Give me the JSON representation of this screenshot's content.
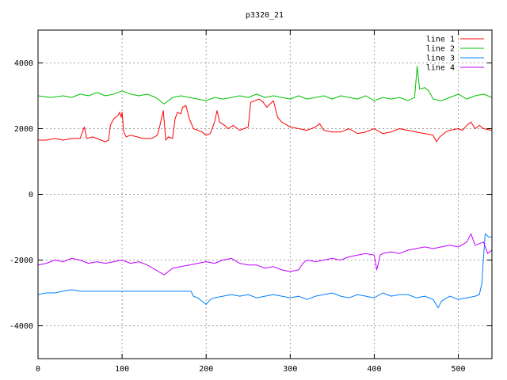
{
  "chart_data": {
    "type": "line",
    "title": "p3320_21",
    "xlim": [
      0,
      540
    ],
    "ylim": [
      -5000,
      5000
    ],
    "xticks": [
      0,
      100,
      200,
      300,
      400,
      500
    ],
    "yticks": [
      -4000,
      -2000,
      0,
      2000,
      4000
    ],
    "xtick_labels": [
      "0",
      "100",
      "200",
      "300",
      "400",
      "500"
    ],
    "ytick_labels": [
      "-4000",
      "-2000",
      "0",
      "2000",
      "4000"
    ],
    "grid": true,
    "legend_position": "top-right",
    "series": [
      {
        "name": "line 1",
        "color": "#ff0000",
        "points": [
          [
            0,
            1650
          ],
          [
            10,
            1650
          ],
          [
            20,
            1700
          ],
          [
            30,
            1650
          ],
          [
            40,
            1700
          ],
          [
            50,
            1700
          ],
          [
            55,
            2050
          ],
          [
            58,
            1700
          ],
          [
            65,
            1750
          ],
          [
            75,
            1650
          ],
          [
            80,
            1600
          ],
          [
            84,
            1650
          ],
          [
            86,
            2100
          ],
          [
            90,
            2300
          ],
          [
            95,
            2400
          ],
          [
            97,
            2500
          ],
          [
            99,
            2350
          ],
          [
            100,
            2500
          ],
          [
            102,
            1900
          ],
          [
            105,
            1750
          ],
          [
            110,
            1800
          ],
          [
            118,
            1750
          ],
          [
            125,
            1700
          ],
          [
            135,
            1700
          ],
          [
            142,
            1800
          ],
          [
            145,
            2100
          ],
          [
            149,
            2550
          ],
          [
            152,
            1650
          ],
          [
            155,
            1750
          ],
          [
            160,
            1700
          ],
          [
            163,
            2300
          ],
          [
            166,
            2500
          ],
          [
            170,
            2450
          ],
          [
            172,
            2650
          ],
          [
            176,
            2700
          ],
          [
            180,
            2300
          ],
          [
            185,
            2000
          ],
          [
            195,
            1900
          ],
          [
            200,
            1800
          ],
          [
            205,
            1850
          ],
          [
            210,
            2200
          ],
          [
            213,
            2550
          ],
          [
            216,
            2200
          ],
          [
            222,
            2100
          ],
          [
            226,
            2000
          ],
          [
            232,
            2100
          ],
          [
            240,
            1950
          ],
          [
            245,
            2000
          ],
          [
            250,
            2050
          ],
          [
            253,
            2800
          ],
          [
            258,
            2850
          ],
          [
            263,
            2900
          ],
          [
            268,
            2800
          ],
          [
            272,
            2650
          ],
          [
            276,
            2750
          ],
          [
            280,
            2850
          ],
          [
            285,
            2350
          ],
          [
            290,
            2200
          ],
          [
            300,
            2050
          ],
          [
            310,
            2000
          ],
          [
            320,
            1950
          ],
          [
            330,
            2050
          ],
          [
            335,
            2150
          ],
          [
            340,
            1950
          ],
          [
            350,
            1900
          ],
          [
            360,
            1900
          ],
          [
            370,
            2000
          ],
          [
            380,
            1850
          ],
          [
            390,
            1900
          ],
          [
            400,
            2000
          ],
          [
            410,
            1850
          ],
          [
            420,
            1900
          ],
          [
            430,
            2000
          ],
          [
            440,
            1950
          ],
          [
            450,
            1900
          ],
          [
            460,
            1850
          ],
          [
            470,
            1800
          ],
          [
            474,
            1600
          ],
          [
            478,
            1750
          ],
          [
            485,
            1900
          ],
          [
            490,
            1950
          ],
          [
            500,
            2000
          ],
          [
            505,
            1950
          ],
          [
            510,
            2100
          ],
          [
            515,
            2200
          ],
          [
            520,
            2000
          ],
          [
            525,
            2100
          ],
          [
            530,
            2000
          ],
          [
            540,
            1950
          ]
        ]
      },
      {
        "name": "line 2",
        "color": "#00c000",
        "points": [
          [
            0,
            3000
          ],
          [
            15,
            2950
          ],
          [
            30,
            3000
          ],
          [
            40,
            2950
          ],
          [
            50,
            3050
          ],
          [
            60,
            3000
          ],
          [
            70,
            3100
          ],
          [
            80,
            3000
          ],
          [
            90,
            3050
          ],
          [
            100,
            3150
          ],
          [
            110,
            3050
          ],
          [
            120,
            3000
          ],
          [
            130,
            3050
          ],
          [
            140,
            2950
          ],
          [
            150,
            2750
          ],
          [
            160,
            2950
          ],
          [
            170,
            3000
          ],
          [
            180,
            2950
          ],
          [
            190,
            2900
          ],
          [
            200,
            2850
          ],
          [
            210,
            2950
          ],
          [
            220,
            2900
          ],
          [
            230,
            2950
          ],
          [
            240,
            3000
          ],
          [
            250,
            2950
          ],
          [
            260,
            3050
          ],
          [
            270,
            2950
          ],
          [
            280,
            3000
          ],
          [
            290,
            2950
          ],
          [
            300,
            2900
          ],
          [
            310,
            3000
          ],
          [
            320,
            2900
          ],
          [
            330,
            2950
          ],
          [
            340,
            3000
          ],
          [
            350,
            2900
          ],
          [
            360,
            3000
          ],
          [
            370,
            2950
          ],
          [
            380,
            2900
          ],
          [
            390,
            3000
          ],
          [
            400,
            2850
          ],
          [
            410,
            2950
          ],
          [
            420,
            2900
          ],
          [
            430,
            2950
          ],
          [
            440,
            2850
          ],
          [
            448,
            2950
          ],
          [
            451,
            3900
          ],
          [
            454,
            3200
          ],
          [
            460,
            3250
          ],
          [
            465,
            3150
          ],
          [
            470,
            2900
          ],
          [
            480,
            2850
          ],
          [
            490,
            2950
          ],
          [
            500,
            3050
          ],
          [
            510,
            2900
          ],
          [
            520,
            3000
          ],
          [
            530,
            3050
          ],
          [
            540,
            2950
          ]
        ]
      },
      {
        "name": "line 3",
        "color": "#0080ff",
        "points": [
          [
            0,
            -3050
          ],
          [
            10,
            -3000
          ],
          [
            20,
            -3000
          ],
          [
            30,
            -2950
          ],
          [
            40,
            -2900
          ],
          [
            50,
            -2950
          ],
          [
            60,
            -2950
          ],
          [
            100,
            -2950
          ],
          [
            150,
            -2950
          ],
          [
            182,
            -2950
          ],
          [
            185,
            -3100
          ],
          [
            190,
            -3150
          ],
          [
            195,
            -3250
          ],
          [
            200,
            -3350
          ],
          [
            205,
            -3200
          ],
          [
            210,
            -3150
          ],
          [
            220,
            -3100
          ],
          [
            230,
            -3050
          ],
          [
            240,
            -3100
          ],
          [
            250,
            -3050
          ],
          [
            260,
            -3150
          ],
          [
            270,
            -3100
          ],
          [
            280,
            -3050
          ],
          [
            290,
            -3100
          ],
          [
            300,
            -3150
          ],
          [
            310,
            -3100
          ],
          [
            320,
            -3200
          ],
          [
            330,
            -3100
          ],
          [
            340,
            -3050
          ],
          [
            350,
            -3000
          ],
          [
            360,
            -3100
          ],
          [
            370,
            -3150
          ],
          [
            380,
            -3050
          ],
          [
            390,
            -3100
          ],
          [
            400,
            -3150
          ],
          [
            410,
            -3000
          ],
          [
            420,
            -3100
          ],
          [
            430,
            -3050
          ],
          [
            440,
            -3050
          ],
          [
            450,
            -3150
          ],
          [
            460,
            -3100
          ],
          [
            470,
            -3200
          ],
          [
            476,
            -3450
          ],
          [
            480,
            -3250
          ],
          [
            490,
            -3100
          ],
          [
            500,
            -3200
          ],
          [
            510,
            -3150
          ],
          [
            520,
            -3100
          ],
          [
            525,
            -3050
          ],
          [
            528,
            -2700
          ],
          [
            530,
            -1900
          ],
          [
            532,
            -1200
          ],
          [
            536,
            -1300
          ],
          [
            540,
            -1300
          ]
        ]
      },
      {
        "name": "line 4",
        "color": "#c000ff",
        "points": [
          [
            0,
            -2150
          ],
          [
            10,
            -2100
          ],
          [
            20,
            -2000
          ],
          [
            30,
            -2050
          ],
          [
            40,
            -1950
          ],
          [
            50,
            -2000
          ],
          [
            60,
            -2100
          ],
          [
            70,
            -2050
          ],
          [
            80,
            -2100
          ],
          [
            90,
            -2050
          ],
          [
            100,
            -2000
          ],
          [
            110,
            -2100
          ],
          [
            120,
            -2050
          ],
          [
            130,
            -2150
          ],
          [
            140,
            -2300
          ],
          [
            150,
            -2450
          ],
          [
            160,
            -2250
          ],
          [
            170,
            -2200
          ],
          [
            180,
            -2150
          ],
          [
            190,
            -2100
          ],
          [
            200,
            -2050
          ],
          [
            210,
            -2100
          ],
          [
            220,
            -2000
          ],
          [
            230,
            -1950
          ],
          [
            240,
            -2100
          ],
          [
            250,
            -2150
          ],
          [
            260,
            -2150
          ],
          [
            270,
            -2250
          ],
          [
            280,
            -2200
          ],
          [
            290,
            -2300
          ],
          [
            300,
            -2350
          ],
          [
            310,
            -2300
          ],
          [
            315,
            -2100
          ],
          [
            320,
            -2000
          ],
          [
            330,
            -2050
          ],
          [
            340,
            -2000
          ],
          [
            350,
            -1950
          ],
          [
            360,
            -2000
          ],
          [
            370,
            -1900
          ],
          [
            380,
            -1850
          ],
          [
            390,
            -1800
          ],
          [
            400,
            -1850
          ],
          [
            403,
            -2300
          ],
          [
            407,
            -1850
          ],
          [
            410,
            -1800
          ],
          [
            420,
            -1750
          ],
          [
            430,
            -1800
          ],
          [
            440,
            -1700
          ],
          [
            450,
            -1650
          ],
          [
            460,
            -1600
          ],
          [
            470,
            -1650
          ],
          [
            480,
            -1600
          ],
          [
            490,
            -1550
          ],
          [
            500,
            -1600
          ],
          [
            510,
            -1450
          ],
          [
            515,
            -1200
          ],
          [
            520,
            -1550
          ],
          [
            525,
            -1500
          ],
          [
            530,
            -1450
          ],
          [
            535,
            -1800
          ],
          [
            540,
            -1700
          ]
        ]
      }
    ]
  }
}
